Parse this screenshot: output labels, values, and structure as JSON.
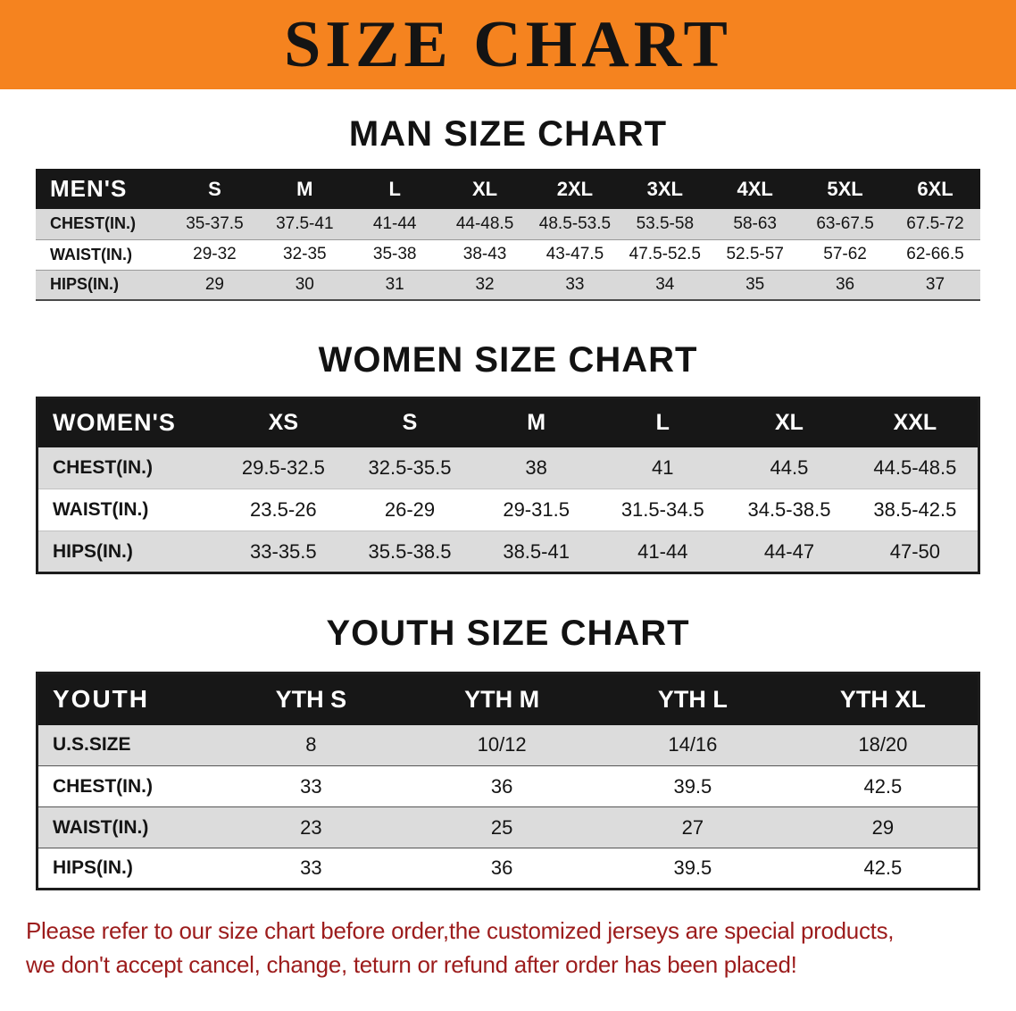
{
  "banner": {
    "title": "SIZE CHART"
  },
  "colors": {
    "banner_bg": "#f5831f",
    "table_header_bar": "#171717",
    "row_stripe": "#d9d9d9",
    "notice_text": "#9c1c1c"
  },
  "men": {
    "heading": "MAN SIZE CHART",
    "header": [
      "MEN'S",
      "S",
      "M",
      "L",
      "XL",
      "2XL",
      "3XL",
      "4XL",
      "5XL",
      "6XL"
    ],
    "rows": [
      [
        "CHEST(IN.)",
        "35-37.5",
        "37.5-41",
        "41-44",
        "44-48.5",
        "48.5-53.5",
        "53.5-58",
        "58-63",
        "63-67.5",
        "67.5-72"
      ],
      [
        "WAIST(IN.)",
        "29-32",
        "32-35",
        "35-38",
        "38-43",
        "43-47.5",
        "47.5-52.5",
        "52.5-57",
        "57-62",
        "62-66.5"
      ],
      [
        "HIPS(IN.)",
        "29",
        "30",
        "31",
        "32",
        "33",
        "34",
        "35",
        "36",
        "37"
      ]
    ]
  },
  "women": {
    "heading": "WOMEN SIZE CHART",
    "header": [
      "WOMEN'S",
      "XS",
      "S",
      "M",
      "L",
      "XL",
      "XXL"
    ],
    "rows": [
      [
        "CHEST(IN.)",
        "29.5-32.5",
        "32.5-35.5",
        "38",
        "41",
        "44.5",
        "44.5-48.5"
      ],
      [
        "WAIST(IN.)",
        "23.5-26",
        "26-29",
        "29-31.5",
        "31.5-34.5",
        "34.5-38.5",
        "38.5-42.5"
      ],
      [
        "HIPS(IN.)",
        "33-35.5",
        "35.5-38.5",
        "38.5-41",
        "41-44",
        "44-47",
        "47-50"
      ]
    ]
  },
  "youth": {
    "heading": "YOUTH SIZE CHART",
    "header": [
      "YOUTH",
      "YTH S",
      "YTH M",
      "YTH L",
      "YTH XL"
    ],
    "rows": [
      [
        "U.S.SIZE",
        "8",
        "10/12",
        "14/16",
        "18/20"
      ],
      [
        "CHEST(IN.)",
        "33",
        "36",
        "39.5",
        "42.5"
      ],
      [
        "WAIST(IN.)",
        "23",
        "25",
        "27",
        "29"
      ],
      [
        "HIPS(IN.)",
        "33",
        "36",
        "39.5",
        "42.5"
      ]
    ]
  },
  "footer": {
    "line1": "Please refer to our size chart before order,the customized jerseys are special products,",
    "line2": "we don't accept cancel, change, teturn or refund after order has been placed!"
  }
}
